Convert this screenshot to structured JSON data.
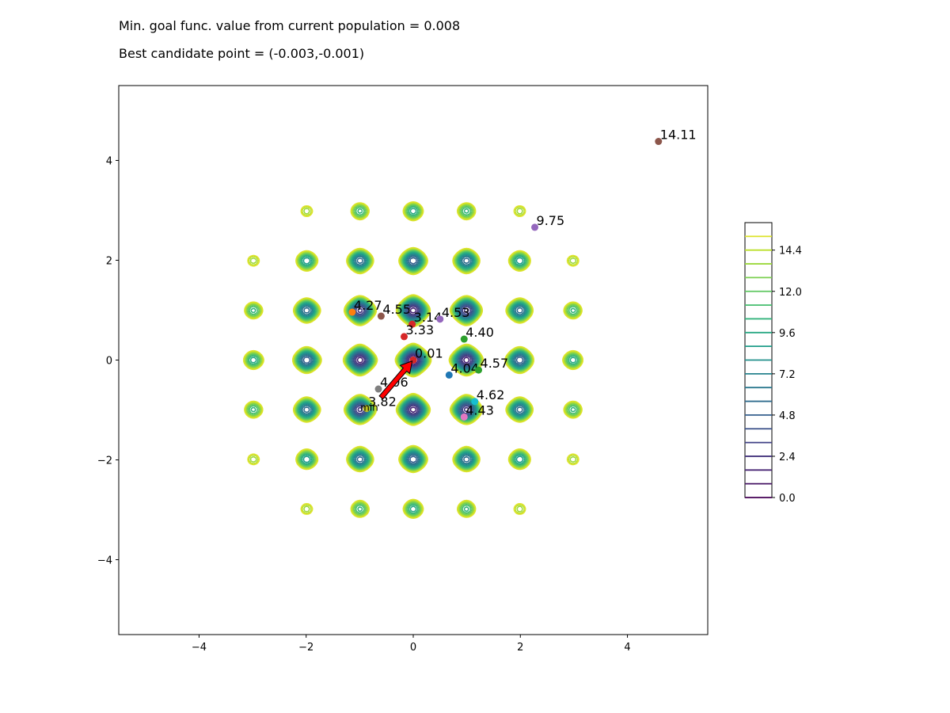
{
  "header": {
    "min_value_text": "Min. goal func. value from current population = 0.008",
    "best_point_text": "Best candidate point = (-0.003,-0.001)"
  },
  "chart_data": {
    "type": "contour",
    "function": "rastrigin",
    "xlim": [
      -5.5,
      5.5
    ],
    "ylim": [
      -5.5,
      5.5
    ],
    "x_ticks": [
      -4,
      -2,
      0,
      2,
      4
    ],
    "y_ticks": [
      -4,
      -2,
      0,
      2,
      4
    ],
    "contour_levels": [
      0.0,
      0.8,
      1.6,
      2.4,
      3.2,
      4.0,
      4.8,
      5.6,
      6.4,
      7.2,
      8.0,
      8.8,
      9.6,
      10.4,
      11.2,
      12.0,
      12.8,
      13.6,
      14.4,
      15.2,
      16.0
    ],
    "colorbar": {
      "ticks": [
        0.0,
        2.4,
        4.8,
        7.2,
        9.6,
        12.0,
        14.4
      ],
      "tick_labels": [
        "0.0",
        "2.4",
        "4.8",
        "7.2",
        "9.6",
        "12.0",
        "14.4"
      ],
      "colormap": "viridis"
    },
    "points": [
      {
        "x": 4.58,
        "y": 4.38,
        "label": "14.11",
        "color": "#8c564b"
      },
      {
        "x": 2.27,
        "y": 2.66,
        "label": "9.75",
        "color": "#9467bd"
      },
      {
        "x": -1.14,
        "y": 0.96,
        "label": "4.27",
        "color": "#ff7f0e"
      },
      {
        "x": -0.6,
        "y": 0.88,
        "label": "4.55",
        "color": "#8c564b"
      },
      {
        "x": -0.02,
        "y": 0.72,
        "label": "3.14",
        "color": "#d62728"
      },
      {
        "x": 0.5,
        "y": 0.82,
        "label": "4.53",
        "color": "#9467bd"
      },
      {
        "x": -0.17,
        "y": 0.47,
        "label": "3.33",
        "color": "#d62728"
      },
      {
        "x": 0.95,
        "y": 0.42,
        "label": "4.40",
        "color": "#2ca02c"
      },
      {
        "x": 0.0,
        "y": 0.0,
        "label": "0.01",
        "color": "#d62728"
      },
      {
        "x": 0.67,
        "y": -0.3,
        "label": "4.04",
        "color": "#1f77b4"
      },
      {
        "x": 1.22,
        "y": -0.2,
        "label": "4.57",
        "color": "#2ca02c"
      },
      {
        "x": -0.65,
        "y": -0.58,
        "label": "4.06",
        "color": "#7f7f7f"
      },
      {
        "x": -0.87,
        "y": -0.97,
        "label": "3.82",
        "color": "#bcbd22"
      },
      {
        "x": 1.15,
        "y": -0.83,
        "label": "4.62",
        "color": "#17becf"
      },
      {
        "x": 0.95,
        "y": -1.14,
        "label": "4.43",
        "color": "#e377c2"
      }
    ],
    "min_marker_label": "min",
    "min_marker": {
      "x": -0.87,
      "y": -0.97
    },
    "arrow": {
      "from_x": -0.6,
      "from_y": -0.75,
      "to_x": -0.02,
      "to_y": -0.02,
      "color": "#ff0000"
    }
  }
}
